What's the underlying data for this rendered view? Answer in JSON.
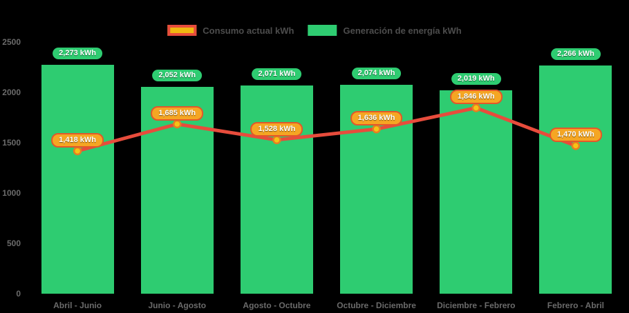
{
  "colors": {
    "background": "#000000",
    "bar_green": "#2ecc71",
    "line_red": "#e74c3c",
    "point_gold": "#f6c315",
    "point_ring": "#e67e22",
    "line_label_bg": "#f5a623",
    "line_label_border": "#e2572b",
    "legend_line_swatch_fill": "#f0b810",
    "axis_text": "#6b6b6b",
    "legend_text": "#4d4d4d",
    "value_text": "#ffffff"
  },
  "chart_data": {
    "type": "combo (bar + line)",
    "title": "",
    "categories": [
      "Abril - Junio",
      "Junio - Agosto",
      "Agosto - Octubre",
      "Octubre - Diciembre",
      "Diciembre - Febrero",
      "Febrero - Abril"
    ],
    "series": [
      {
        "name": "Consumo actual kWh",
        "type": "line",
        "values": [
          1418,
          1685,
          1528,
          1636,
          1846,
          1470
        ],
        "labels": [
          "1,418 kWh",
          "1,685 kWh",
          "1,528 kWh",
          "1,636 kWh",
          "1,846 kWh",
          "1,470 kWh"
        ]
      },
      {
        "name": "Generación de energía kWh",
        "type": "bar",
        "values": [
          2273,
          2052,
          2071,
          2074,
          2019,
          2266
        ],
        "labels": [
          "2,273 kWh",
          "2,052 kWh",
          "2,071 kWh",
          "2,074 kWh",
          "2,019 kWh",
          "2,266 kWh"
        ]
      }
    ],
    "y_axis": {
      "min": 0,
      "max": 2500,
      "ticks": [
        "0",
        "500",
        "1000",
        "1500",
        "2000",
        "2500"
      ]
    },
    "x_axis": {
      "label": ""
    },
    "legend_position": "top center",
    "grid": false
  }
}
